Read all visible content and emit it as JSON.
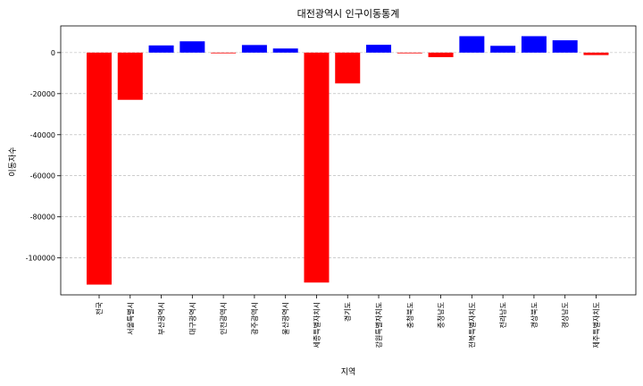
{
  "chart_data": {
    "type": "bar",
    "title": "대전광역시 인구이동통계",
    "xlabel": "지역",
    "ylabel": "이동자수",
    "categories": [
      "전국",
      "서울특별시",
      "부산광역시",
      "대구광역시",
      "인천광역시",
      "광주광역시",
      "울산광역시",
      "세종특별자치시",
      "경기도",
      "강원특별자치도",
      "충청북도",
      "충청남도",
      "전북특별자치도",
      "전라남도",
      "경상북도",
      "경상남도",
      "제주특별자치도"
    ],
    "values": [
      -113000,
      -23000,
      3500,
      5500,
      -300,
      3700,
      2000,
      -112000,
      -15000,
      3800,
      -300,
      -2200,
      8000,
      3300,
      8000,
      6000,
      -1200
    ],
    "ylim": [
      -118000,
      13000
    ],
    "yticks": [
      0,
      -20000,
      -40000,
      -60000,
      -80000,
      -100000
    ],
    "positive_color": "#0000ff",
    "negative_color": "#ff0000",
    "grid": "horizontal-dashed"
  }
}
